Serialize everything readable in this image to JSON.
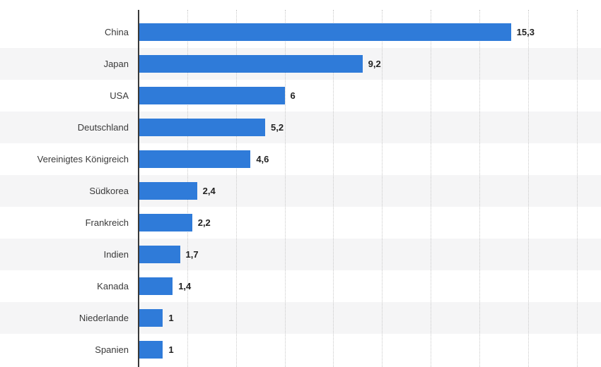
{
  "chart_data": {
    "type": "bar",
    "orientation": "horizontal",
    "title": "",
    "xlabel": "",
    "ylabel": "",
    "categories": [
      "China",
      "Japan",
      "USA",
      "Deutschland",
      "Vereinigtes Königreich",
      "Südkorea",
      "Frankreich",
      "Indien",
      "Kanada",
      "Niederlande",
      "Spanien"
    ],
    "values": [
      15.3,
      9.2,
      6,
      5.2,
      4.6,
      2.4,
      2.2,
      1.7,
      1.4,
      1,
      1
    ],
    "value_labels": [
      "15,3",
      "9,2",
      "6",
      "5,2",
      "4,6",
      "2,4",
      "2,2",
      "1,7",
      "1,4",
      "1",
      "1"
    ],
    "xlim": [
      0,
      19
    ],
    "grid_step": 2,
    "grid": true,
    "legend": false
  },
  "colors": {
    "bar": "#2f7bd9",
    "gridline": "#c9c9c9",
    "row_stripe": "#f5f5f6",
    "axis": "#3a3a3a",
    "category_label": "#3a3a3a",
    "value_label": "#222222",
    "background": "#ffffff"
  }
}
